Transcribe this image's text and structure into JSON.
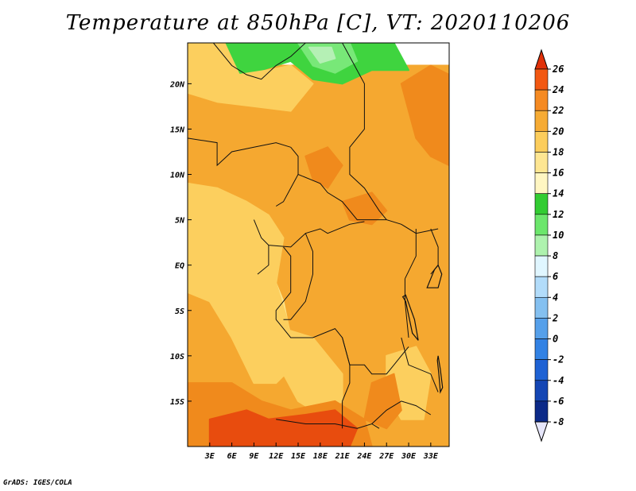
{
  "title": "Temperature at 850hPa [C], VT: 2020110206",
  "credit": "GrADS: IGES/COLA",
  "map": {
    "lon_range": [
      0,
      35.5
    ],
    "lat_range": [
      -20,
      24.5
    ],
    "lon_ticks": [
      {
        "value": 3,
        "label": "3E"
      },
      {
        "value": 6,
        "label": "6E"
      },
      {
        "value": 9,
        "label": "9E"
      },
      {
        "value": 12,
        "label": "12E"
      },
      {
        "value": 15,
        "label": "15E"
      },
      {
        "value": 18,
        "label": "18E"
      },
      {
        "value": 21,
        "label": "21E"
      },
      {
        "value": 24,
        "label": "24E"
      },
      {
        "value": 27,
        "label": "27E"
      },
      {
        "value": 30,
        "label": "30E"
      },
      {
        "value": 33,
        "label": "33E"
      }
    ],
    "lat_ticks": [
      {
        "value": 20,
        "label": "20N"
      },
      {
        "value": 15,
        "label": "15N"
      },
      {
        "value": 10,
        "label": "10N"
      },
      {
        "value": 5,
        "label": "5N"
      },
      {
        "value": 0,
        "label": "EQ"
      },
      {
        "value": -5,
        "label": "5S"
      },
      {
        "value": -10,
        "label": "10S"
      },
      {
        "value": -15,
        "label": "15S"
      }
    ],
    "regions": [
      {
        "name": "warm-band-north",
        "temp": 20,
        "color": "#f5a830",
        "pts": [
          [
            0,
            22
          ],
          [
            35.5,
            22
          ],
          [
            35.5,
            -20
          ],
          [
            0,
            -20
          ]
        ]
      },
      {
        "name": "cool-sahara",
        "temp": 12,
        "color": "#3fd43f",
        "pts": [
          [
            5,
            24.5
          ],
          [
            28,
            24.5
          ],
          [
            30,
            21.5
          ],
          [
            25,
            21.5
          ],
          [
            21,
            20
          ],
          [
            17,
            20.5
          ],
          [
            14,
            22.5
          ],
          [
            10,
            21.5
          ],
          [
            8,
            20
          ],
          [
            6,
            21.5
          ]
        ]
      },
      {
        "name": "cool-sahara-inner",
        "temp": 10,
        "color": "#78e878",
        "pts": [
          [
            15,
            24.5
          ],
          [
            22,
            24.5
          ],
          [
            23,
            22.5
          ],
          [
            20,
            21.2
          ],
          [
            17,
            22
          ]
        ]
      },
      {
        "name": "cool-sahara-core",
        "temp": 8,
        "color": "#b5f0b5",
        "pts": [
          [
            16.5,
            24
          ],
          [
            19.5,
            24
          ],
          [
            20,
            22.8
          ],
          [
            18,
            22.3
          ]
        ]
      },
      {
        "name": "mild-sahel-west",
        "temp": 18,
        "color": "#fccf5e",
        "pts": [
          [
            0,
            24.5
          ],
          [
            5,
            24.5
          ],
          [
            7,
            21
          ],
          [
            11,
            21.5
          ],
          [
            14,
            22
          ],
          [
            17,
            20
          ],
          [
            14,
            17
          ],
          [
            9,
            17.5
          ],
          [
            4,
            18
          ],
          [
            0,
            19
          ]
        ]
      },
      {
        "name": "mild-coast-west",
        "temp": 16,
        "color": "#fde58c",
        "pts": [
          [
            0,
            6
          ],
          [
            4,
            6
          ],
          [
            6,
            4
          ],
          [
            9,
            2
          ],
          [
            11,
            0
          ],
          [
            13,
            -4
          ],
          [
            14,
            -8
          ],
          [
            12,
            -11
          ],
          [
            10,
            -11
          ],
          [
            8,
            -6
          ],
          [
            5,
            -2
          ],
          [
            2,
            0
          ],
          [
            0,
            1
          ]
        ]
      },
      {
        "name": "mild-guinea",
        "temp": 18,
        "color": "#fccf5e",
        "pts": [
          [
            0,
            9
          ],
          [
            4,
            8.5
          ],
          [
            8,
            7
          ],
          [
            11,
            5.5
          ],
          [
            13,
            3
          ],
          [
            12,
            -2
          ],
          [
            13.5,
            -6
          ],
          [
            14.5,
            -11
          ],
          [
            12,
            -13
          ],
          [
            9,
            -13
          ],
          [
            6,
            -8
          ],
          [
            3,
            -4
          ],
          [
            0,
            -3
          ]
        ]
      },
      {
        "name": "mild-angola",
        "temp": 18,
        "color": "#fccf5e",
        "pts": [
          [
            13,
            -7
          ],
          [
            17,
            -8
          ],
          [
            21,
            -12
          ],
          [
            21,
            -15
          ],
          [
            18,
            -16.5
          ],
          [
            15,
            -15
          ],
          [
            13,
            -12
          ]
        ]
      },
      {
        "name": "mild-lakes",
        "temp": 18,
        "color": "#fccf5e",
        "pts": [
          [
            27,
            -10
          ],
          [
            31,
            -9
          ],
          [
            33,
            -12
          ],
          [
            32,
            -17
          ],
          [
            29,
            -17
          ],
          [
            27,
            -14
          ]
        ]
      },
      {
        "name": "hot-sudan",
        "temp": 22,
        "color": "#f08a1c",
        "pts": [
          [
            29,
            20
          ],
          [
            33,
            22
          ],
          [
            35.5,
            21
          ],
          [
            35.5,
            11
          ],
          [
            33,
            12
          ],
          [
            31,
            14
          ],
          [
            30,
            17
          ]
        ]
      },
      {
        "name": "hot-chad",
        "temp": 22,
        "color": "#f08a1c",
        "pts": [
          [
            16,
            12
          ],
          [
            19,
            13
          ],
          [
            21,
            11
          ],
          [
            19,
            8.5
          ],
          [
            17,
            9.5
          ]
        ]
      },
      {
        "name": "hot-car",
        "temp": 22,
        "color": "#f08a1c",
        "pts": [
          [
            21,
            7
          ],
          [
            25,
            8
          ],
          [
            27,
            6
          ],
          [
            25,
            4.5
          ],
          [
            22,
            5
          ]
        ]
      },
      {
        "name": "hot-kalahari",
        "temp": 22,
        "color": "#f08a1c",
        "pts": [
          [
            0,
            -13
          ],
          [
            6,
            -13
          ],
          [
            10,
            -15
          ],
          [
            14,
            -16
          ],
          [
            20,
            -15
          ],
          [
            24,
            -17
          ],
          [
            25,
            -20
          ],
          [
            0,
            -20
          ]
        ]
      },
      {
        "name": "hotter-kalahari",
        "temp": 24,
        "color": "#e84c0e",
        "pts": [
          [
            3,
            -17
          ],
          [
            8,
            -16
          ],
          [
            11,
            -17
          ],
          [
            16,
            -16.5
          ],
          [
            20,
            -16
          ],
          [
            23,
            -18
          ],
          [
            22,
            -20
          ],
          [
            3,
            -20
          ]
        ]
      },
      {
        "name": "hot-east",
        "temp": 22,
        "color": "#f08a1c",
        "pts": [
          [
            25,
            -13
          ],
          [
            28,
            -12
          ],
          [
            29,
            -16
          ],
          [
            27,
            -18
          ],
          [
            24,
            -17
          ]
        ]
      }
    ],
    "borders": [
      [
        [
          3.5,
          24.5
        ],
        [
          6,
          22
        ],
        [
          8,
          21
        ],
        [
          10,
          20.5
        ],
        [
          12,
          22
        ],
        [
          14,
          23
        ]
      ],
      [
        [
          14,
          23
        ],
        [
          16,
          24.5
        ]
      ],
      [
        [
          21,
          24.5
        ],
        [
          24,
          20
        ],
        [
          24,
          15
        ],
        [
          22,
          13
        ],
        [
          22,
          10
        ],
        [
          24,
          8.5
        ],
        [
          26,
          6
        ],
        [
          27,
          5
        ],
        [
          29,
          4.5
        ],
        [
          31,
          3.5
        ],
        [
          34,
          4
        ]
      ],
      [
        [
          0,
          14
        ],
        [
          4,
          13.5
        ],
        [
          4,
          11
        ],
        [
          6,
          12.5
        ],
        [
          9,
          13
        ],
        [
          12,
          13.5
        ],
        [
          14,
          13
        ]
      ],
      [
        [
          14,
          13
        ],
        [
          15,
          12
        ],
        [
          15,
          10
        ],
        [
          14,
          8.5
        ],
        [
          13,
          7
        ],
        [
          12,
          6.5
        ]
      ],
      [
        [
          15,
          10
        ],
        [
          18,
          9
        ],
        [
          19,
          8
        ],
        [
          21,
          7
        ],
        [
          23,
          5
        ],
        [
          25,
          5
        ],
        [
          27,
          5
        ]
      ],
      [
        [
          9,
          5
        ],
        [
          10,
          3
        ],
        [
          11,
          2.2
        ],
        [
          14,
          2
        ],
        [
          16,
          3.5
        ],
        [
          18,
          4
        ],
        [
          19,
          3.5
        ],
        [
          22,
          4.5
        ],
        [
          24,
          4.8
        ]
      ],
      [
        [
          11,
          2.2
        ],
        [
          11,
          0
        ],
        [
          9.5,
          -1
        ]
      ],
      [
        [
          13,
          2
        ],
        [
          14,
          1
        ],
        [
          14,
          -3
        ],
        [
          12,
          -5
        ],
        [
          12,
          -6
        ]
      ],
      [
        [
          16,
          3.5
        ],
        [
          17,
          1.5
        ],
        [
          17,
          -1
        ],
        [
          16,
          -4
        ],
        [
          15,
          -5
        ],
        [
          14,
          -6
        ],
        [
          13,
          -6
        ]
      ],
      [
        [
          12,
          -6
        ],
        [
          13,
          -7
        ],
        [
          14,
          -8
        ],
        [
          17,
          -8
        ],
        [
          20,
          -7
        ],
        [
          21,
          -8
        ],
        [
          22,
          -11
        ],
        [
          24,
          -11
        ],
        [
          25,
          -12
        ],
        [
          27,
          -12
        ],
        [
          28,
          -11
        ],
        [
          30,
          -9
        ]
      ],
      [
        [
          21,
          -8
        ],
        [
          22,
          -11
        ],
        [
          22,
          -13
        ],
        [
          21,
          -15
        ],
        [
          21,
          -18
        ]
      ],
      [
        [
          12,
          -17
        ],
        [
          16,
          -17.5
        ],
        [
          20,
          -17.5
        ],
        [
          23,
          -18
        ],
        [
          25,
          -17.5
        ],
        [
          26,
          -18
        ]
      ],
      [
        [
          25,
          -17.5
        ],
        [
          27,
          -16
        ],
        [
          29,
          -15
        ],
        [
          31,
          -15.5
        ],
        [
          33,
          -16.5
        ]
      ],
      [
        [
          29,
          -8
        ],
        [
          30,
          -11
        ],
        [
          33,
          -12
        ],
        [
          34,
          -14
        ]
      ],
      [
        [
          29.5,
          -1.5
        ],
        [
          29.5,
          -4
        ],
        [
          30,
          -8
        ]
      ],
      [
        [
          33,
          4
        ],
        [
          34,
          2
        ],
        [
          34,
          0
        ],
        [
          33,
          -1
        ]
      ],
      [
        [
          31,
          4
        ],
        [
          31,
          1
        ],
        [
          29.5,
          -1.5
        ]
      ]
    ],
    "lakes": [
      [
        [
          29.2,
          -3.5
        ],
        [
          29.6,
          -4
        ],
        [
          30.5,
          -7.5
        ],
        [
          31.3,
          -8.3
        ],
        [
          30.8,
          -6
        ],
        [
          29.6,
          -3.3
        ]
      ],
      [
        [
          33.5,
          -0.5
        ],
        [
          33,
          -1.5
        ],
        [
          32.5,
          -2.5
        ],
        [
          34,
          -2.5
        ],
        [
          34.5,
          -1
        ],
        [
          34,
          0
        ]
      ],
      [
        [
          34,
          -10
        ],
        [
          34.3,
          -11.5
        ],
        [
          34.6,
          -13.5
        ],
        [
          34.3,
          -14
        ],
        [
          34.1,
          -12
        ],
        [
          33.9,
          -10.5
        ]
      ]
    ]
  },
  "colorbar": {
    "levels": [
      {
        "label": "26",
        "color": "#e03008"
      },
      {
        "label": "24",
        "color": "#f25812"
      },
      {
        "label": "22",
        "color": "#f58a22"
      },
      {
        "label": "20",
        "color": "#f6ab34"
      },
      {
        "label": "18",
        "color": "#fccd5c"
      },
      {
        "label": "16",
        "color": "#fee692"
      },
      {
        "label": "14",
        "color": "#fff6c2"
      },
      {
        "label": "12",
        "color": "#32cc32"
      },
      {
        "label": "10",
        "color": "#6ce66c"
      },
      {
        "label": "8",
        "color": "#aef2ae"
      },
      {
        "label": "6",
        "color": "#e0f6ff"
      },
      {
        "label": "4",
        "color": "#b2dcfa"
      },
      {
        "label": "2",
        "color": "#84c0f0"
      },
      {
        "label": "0",
        "color": "#56a0ea"
      },
      {
        "label": "-2",
        "color": "#3282e4"
      },
      {
        "label": "-4",
        "color": "#1e62d4"
      },
      {
        "label": "-6",
        "color": "#1446b4"
      },
      {
        "label": "-8",
        "color": "#0c2a88"
      }
    ],
    "top_arrow_color": "#e03008",
    "bottom_arrow_color": "#e6e6fa"
  }
}
